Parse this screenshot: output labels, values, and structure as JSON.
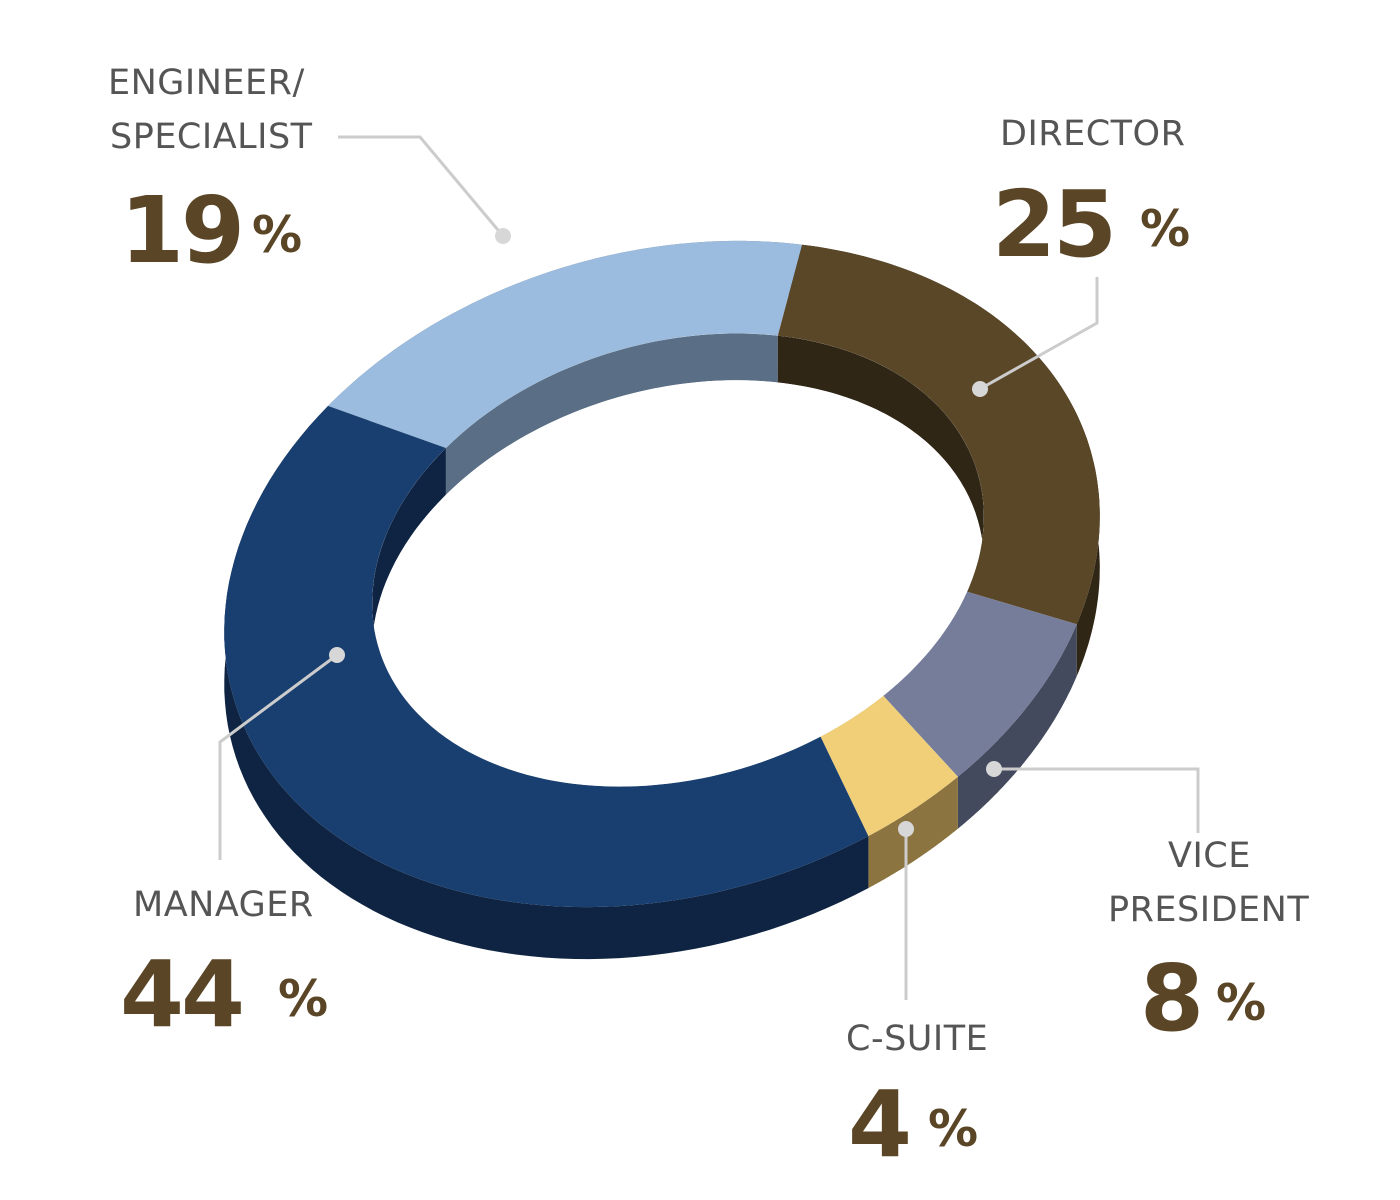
{
  "chart_data": {
    "type": "pie",
    "style": "3d-donut",
    "unit": "%",
    "slices": [
      {
        "label_lines": [
          "ENGINEER/",
          "SPECIALIST"
        ],
        "value": 19,
        "color": "#9bbcde",
        "side_color": "#5a6e85"
      },
      {
        "label_lines": [
          "DIRECTOR"
        ],
        "value": 25,
        "color": "#5a4727",
        "side_color": "#2f2616"
      },
      {
        "label_lines": [
          "VICE",
          "PRESIDENT"
        ],
        "value": 8,
        "color": "#767d9b",
        "side_color": "#444a5e"
      },
      {
        "label_lines": [
          "C-SUITE"
        ],
        "value": 4,
        "color": "#f0cf78",
        "side_color": "#8c7440"
      },
      {
        "label_lines": [
          "MANAGER"
        ],
        "value": 44,
        "color": "#193f70",
        "side_color": "#0f2442"
      }
    ]
  }
}
